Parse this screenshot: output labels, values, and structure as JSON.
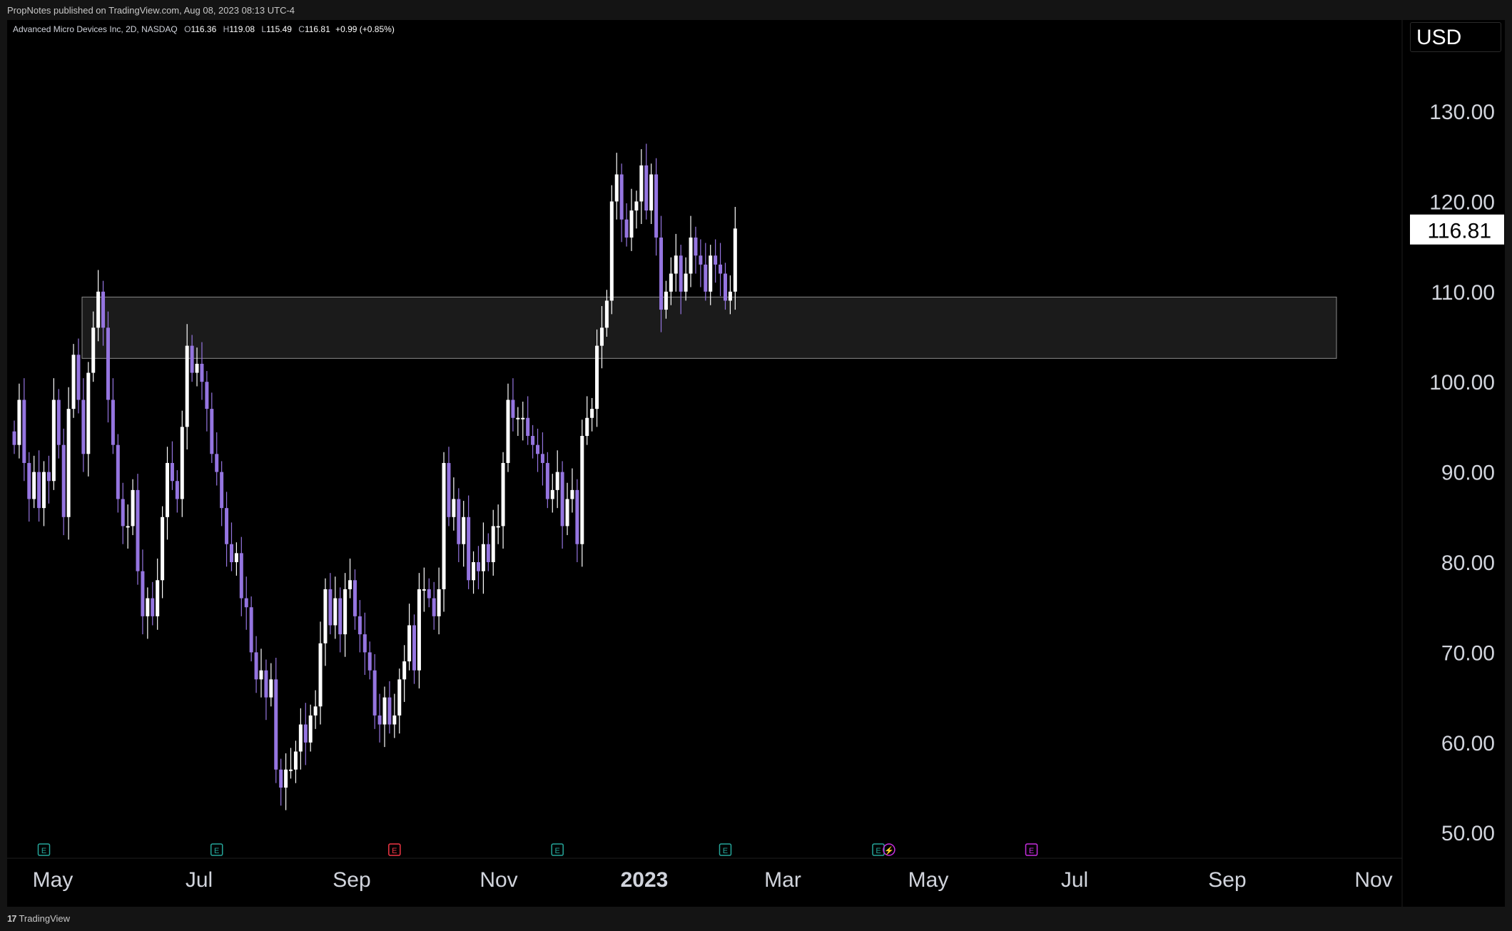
{
  "header": {
    "published": "PropNotes published on TradingView.com, Aug 08, 2023 08:13 UTC-4"
  },
  "legend": {
    "symbol": "Advanced Micro Devices Inc, 2D, NASDAQ",
    "open_label": "O",
    "open": "116.36",
    "high_label": "H",
    "high": "119.08",
    "low_label": "L",
    "low": "115.49",
    "close_label": "C",
    "close": "116.81",
    "change": "+0.99 (+0.85%)"
  },
  "currency": "USD",
  "last_price": "116.81",
  "footer": {
    "brand": "TradingView",
    "logo_glyph": "17"
  },
  "colors": {
    "up": "#ffffff",
    "down": "#9575e0",
    "background": "#000000",
    "zone_fill": "#1b1b1b",
    "zone_stroke": "#8a8a8a",
    "earnings_green": "#26a69a",
    "earnings_red": "#f23645",
    "earnings_purple": "#c82ee0"
  },
  "chart_data": {
    "type": "candlestick",
    "interval": "2D",
    "y_axis": {
      "ticks": [
        "130.00",
        "120.00",
        "110.00",
        "100.00",
        "90.00",
        "80.00",
        "70.00",
        "60.00",
        "50.00"
      ],
      "range": [
        46,
        135
      ],
      "position": "right"
    },
    "x_axis": {
      "labels": [
        "May",
        "Jul",
        "Sep",
        "Nov",
        "2023",
        "Mar",
        "May",
        "Jul",
        "Sep",
        "Nov"
      ],
      "bold": [
        "2023"
      ]
    },
    "zone": {
      "low": 102.6,
      "high": 109.4,
      "label": ""
    },
    "events": [
      {
        "letter": "E",
        "color": "green",
        "index": 6
      },
      {
        "letter": "E",
        "color": "green",
        "index": 41
      },
      {
        "letter": "E",
        "color": "red",
        "index": 77
      },
      {
        "letter": "E",
        "color": "green",
        "index": 110
      },
      {
        "letter": "E",
        "color": "green",
        "index": 144
      },
      {
        "letter": "E",
        "color": "green",
        "index": 175
      },
      {
        "letter": "⚡",
        "color": "purple",
        "index": 176
      },
      {
        "letter": "E",
        "color": "purple",
        "index": 206
      }
    ],
    "closes": [
      93,
      98,
      91,
      87,
      90,
      86,
      90,
      89,
      98,
      93,
      85,
      97,
      103,
      98,
      92,
      101,
      106,
      110,
      106,
      98,
      93,
      87,
      84,
      84,
      88,
      79,
      74,
      76,
      74,
      78,
      85,
      91,
      89,
      87,
      95,
      104,
      101,
      102,
      100,
      97,
      92,
      90,
      86,
      82,
      80,
      81,
      76,
      75,
      70,
      67,
      68,
      65,
      67,
      57,
      55,
      57,
      57,
      59,
      62,
      60,
      63,
      64,
      71,
      77,
      73,
      76,
      72,
      77,
      78,
      74,
      72,
      70,
      68,
      63,
      62,
      65,
      62,
      63,
      67,
      69,
      73,
      68,
      77,
      77,
      76,
      74,
      77,
      91,
      85,
      87,
      82,
      85,
      78,
      80,
      79,
      82,
      80,
      84,
      84,
      91,
      98,
      96,
      96,
      96,
      94,
      93,
      92,
      91,
      87,
      88,
      90,
      84,
      87,
      88,
      82,
      94,
      96,
      97,
      104,
      106,
      109,
      120,
      123,
      118,
      116,
      119,
      120,
      124,
      119,
      123,
      116,
      108,
      110,
      112,
      114,
      110,
      112,
      116,
      114,
      113,
      110,
      114,
      113,
      112,
      109,
      110,
      117
    ]
  }
}
